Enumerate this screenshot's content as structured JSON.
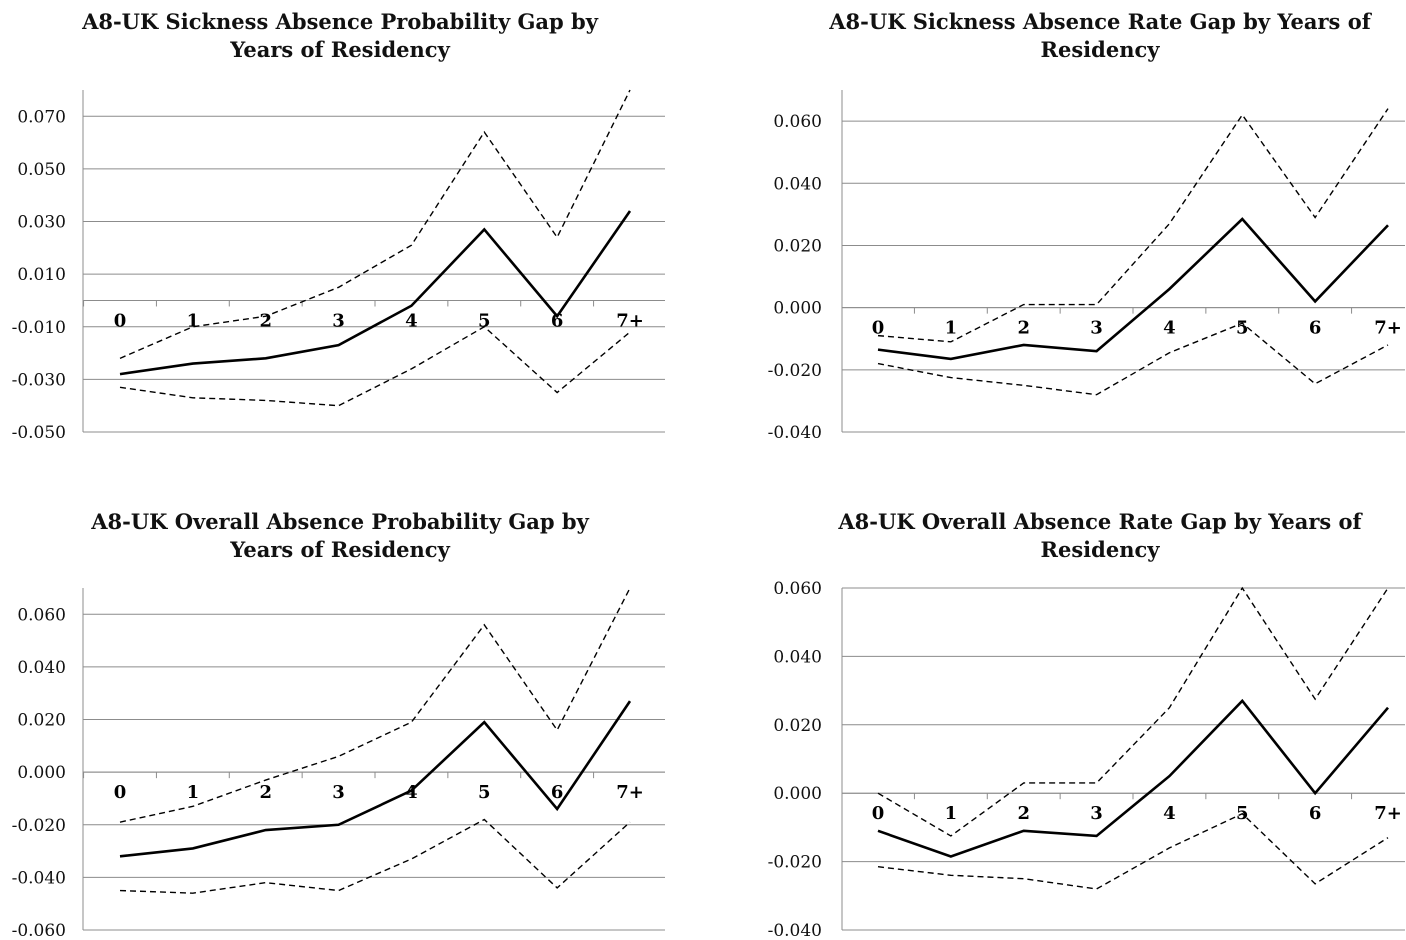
{
  "chart_data": [
    {
      "type": "line",
      "title": "A8-UK Sickness Absence Probability Gap by Years of Residency",
      "categories": [
        "0",
        "1",
        "2",
        "3",
        "4",
        "5",
        "6",
        "7+"
      ],
      "ylim": [
        -0.05,
        0.08
      ],
      "yticks": [
        "0.070",
        "0.050",
        "0.030",
        "0.010",
        "-0.010",
        "-0.030",
        "-0.050"
      ],
      "ytick_values": [
        0.07,
        0.05,
        0.03,
        0.01,
        -0.01,
        -0.03,
        -0.05
      ],
      "grid": true,
      "series": [
        {
          "style": "solid",
          "values": [
            -0.028,
            -0.024,
            -0.022,
            -0.017,
            -0.002,
            0.027,
            -0.006,
            0.034
          ]
        },
        {
          "style": "dashed",
          "values": [
            -0.022,
            -0.01,
            -0.006,
            0.005,
            0.021,
            0.064,
            0.024,
            0.08
          ]
        },
        {
          "style": "dashed",
          "values": [
            -0.033,
            -0.037,
            -0.038,
            -0.04,
            -0.026,
            -0.01,
            -0.035,
            -0.012
          ]
        }
      ]
    },
    {
      "type": "line",
      "title": "A8-UK Sickness Absence Rate Gap by Years of Residency",
      "categories": [
        "0",
        "1",
        "2",
        "3",
        "4",
        "5",
        "6",
        "7+"
      ],
      "ylim": [
        -0.04,
        0.07
      ],
      "yticks": [
        "0.060",
        "0.040",
        "0.020",
        "0.000",
        "-0.020",
        "-0.040"
      ],
      "ytick_values": [
        0.06,
        0.04,
        0.02,
        0.0,
        -0.02,
        -0.04
      ],
      "grid": true,
      "series": [
        {
          "style": "solid",
          "values": [
            -0.0135,
            -0.0165,
            -0.012,
            -0.014,
            0.006,
            0.0285,
            0.002,
            0.0265
          ]
        },
        {
          "style": "dashed",
          "values": [
            -0.009,
            -0.011,
            0.001,
            0.001,
            0.027,
            0.062,
            0.029,
            0.064
          ]
        },
        {
          "style": "dashed",
          "values": [
            -0.018,
            -0.0225,
            -0.025,
            -0.028,
            -0.0145,
            -0.005,
            -0.0245,
            -0.012
          ]
        }
      ]
    },
    {
      "type": "line",
      "title": "A8-UK Overall Absence Probability Gap by Years of Residency",
      "categories": [
        "0",
        "1",
        "2",
        "3",
        "4",
        "5",
        "6",
        "7+"
      ],
      "ylim": [
        -0.06,
        0.07
      ],
      "yticks": [
        "0.060",
        "0.040",
        "0.020",
        "0.000",
        "-0.020",
        "-0.040",
        "-0.060"
      ],
      "ytick_values": [
        0.06,
        0.04,
        0.02,
        0.0,
        -0.02,
        -0.04,
        -0.06
      ],
      "grid": true,
      "series": [
        {
          "style": "solid",
          "values": [
            -0.032,
            -0.029,
            -0.022,
            -0.02,
            -0.007,
            0.019,
            -0.014,
            0.027
          ]
        },
        {
          "style": "dashed",
          "values": [
            -0.019,
            -0.013,
            -0.003,
            0.006,
            0.019,
            0.056,
            0.016,
            0.07
          ]
        },
        {
          "style": "dashed",
          "values": [
            -0.045,
            -0.046,
            -0.042,
            -0.045,
            -0.033,
            -0.018,
            -0.044,
            -0.019
          ]
        }
      ]
    },
    {
      "type": "line",
      "title": "A8-UK Overall Absence Rate Gap by Years of Residency",
      "categories": [
        "0",
        "1",
        "2",
        "3",
        "4",
        "5",
        "6",
        "7+"
      ],
      "ylim": [
        -0.04,
        0.06
      ],
      "yticks": [
        "0.060",
        "0.040",
        "0.020",
        "0.000",
        "-0.020",
        "-0.040"
      ],
      "ytick_values": [
        0.06,
        0.04,
        0.02,
        0.0,
        -0.02,
        -0.04
      ],
      "grid": true,
      "series": [
        {
          "style": "solid",
          "values": [
            -0.011,
            -0.0185,
            -0.011,
            -0.0125,
            0.005,
            0.027,
            0.0,
            0.025
          ]
        },
        {
          "style": "dashed",
          "values": [
            0.0,
            -0.0125,
            0.003,
            0.003,
            0.025,
            0.06,
            0.0275,
            0.06
          ]
        },
        {
          "style": "dashed",
          "values": [
            -0.0215,
            -0.024,
            -0.025,
            -0.028,
            -0.016,
            -0.006,
            -0.0265,
            -0.013
          ]
        }
      ]
    }
  ]
}
